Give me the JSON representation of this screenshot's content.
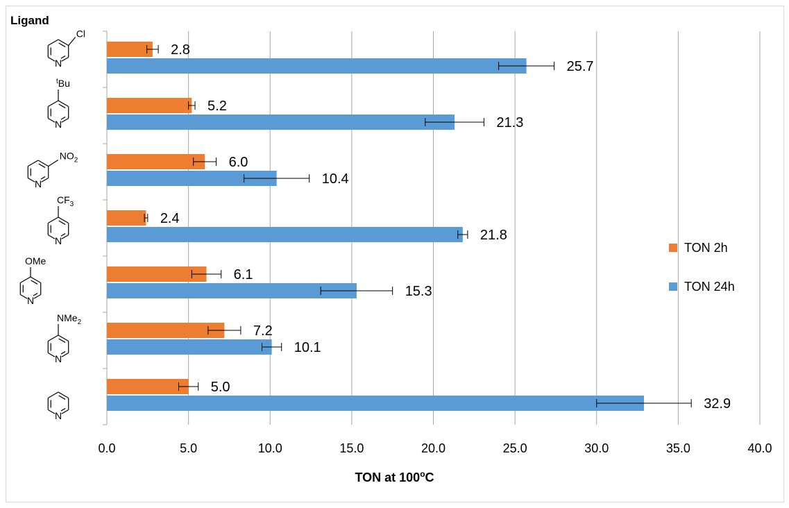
{
  "chart_data": {
    "type": "bar",
    "orientation": "horizontal",
    "yaxis_title": "Ligand",
    "xlabel": "TON at 100",
    "xlabel_sup": "o",
    "xlabel_tail": "C",
    "xlim": [
      0,
      40
    ],
    "xticks": [
      "0.0",
      "5.0",
      "10.0",
      "15.0",
      "20.0",
      "25.0",
      "30.0",
      "35.0",
      "40.0"
    ],
    "grid": "vertical",
    "legend_position": "right",
    "categories": [
      "3-chloropyridine",
      "4-tert-butylpyridine",
      "3-nitropyridine",
      "4-(trifluoromethyl)pyridine",
      "4-methoxypyridine",
      "4-(dimethylamino)pyridine",
      "pyridine"
    ],
    "series": [
      {
        "name": "TON 2h",
        "color": "#ED7D31",
        "values": [
          2.8,
          5.2,
          6.0,
          2.4,
          6.1,
          7.2,
          5.0
        ],
        "labels": [
          "2.8",
          "5.2",
          "6.0",
          "2.4",
          "6.1",
          "7.2",
          "5.0"
        ],
        "errors": [
          0.35,
          0.2,
          0.7,
          0.1,
          0.9,
          1.0,
          0.6
        ]
      },
      {
        "name": "TON 24h",
        "color": "#5B9BD5",
        "values": [
          25.7,
          21.3,
          10.4,
          21.8,
          15.3,
          10.1,
          32.9
        ],
        "labels": [
          "25.7",
          "21.3",
          "10.4",
          "21.8",
          "15.3",
          "10.1",
          "32.9"
        ],
        "errors": [
          1.7,
          1.8,
          2.0,
          0.3,
          2.2,
          0.6,
          2.9
        ]
      }
    ]
  },
  "structures": {
    "cl": "Cl",
    "tbu": "Bu",
    "tbu_sup": "t",
    "no2": "NO",
    "no2_sub": "2",
    "cf3": "CF",
    "cf3_sub": "3",
    "ome": "OMe",
    "nme2": "NMe",
    "nme2_sub": "2",
    "n": "N"
  }
}
